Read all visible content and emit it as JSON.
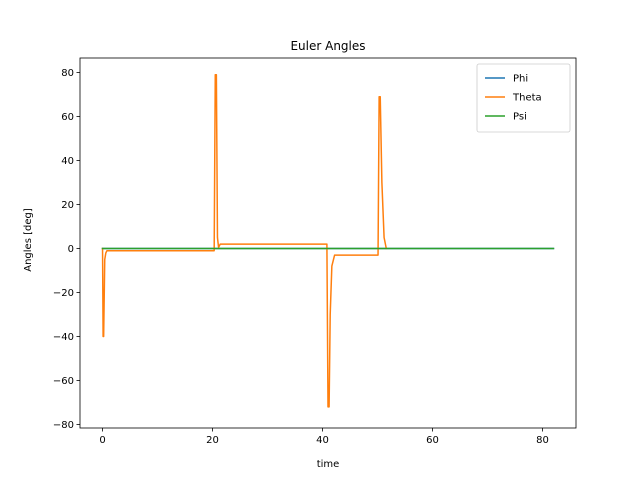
{
  "chart_data": {
    "type": "line",
    "title": "Euler Angles",
    "xlabel": "time",
    "ylabel": "Angles [deg]",
    "xlim": [
      -4.1,
      86.1
    ],
    "ylim": [
      -81.6,
      86.6
    ],
    "xticks": [
      0,
      20,
      40,
      60,
      80
    ],
    "yticks": [
      -80,
      -60,
      -40,
      -20,
      0,
      20,
      40,
      60,
      80
    ],
    "grid": false,
    "legend_position": "top-right",
    "series": [
      {
        "name": "Phi",
        "color": "#1f77b4",
        "x": [
          0,
          82
        ],
        "y": [
          0,
          0
        ]
      },
      {
        "name": "Theta",
        "color": "#ff7f0e",
        "x": [
          0,
          0.1,
          0.2,
          0.4,
          0.6,
          0.8,
          1.2,
          20.3,
          20.5,
          20.7,
          20.9,
          21.1,
          21.4,
          21.8,
          40.8,
          41.0,
          41.2,
          41.4,
          41.7,
          42.2,
          50.1,
          50.3,
          50.5,
          50.8,
          51.2,
          51.6
        ],
        "y": [
          0,
          -40,
          -40,
          -5,
          -2,
          -1,
          -1,
          -1,
          79,
          79,
          5,
          0.5,
          2,
          2,
          2,
          -72,
          -72,
          -30,
          -8,
          -3,
          -3,
          69,
          69,
          30,
          5,
          0
        ]
      },
      {
        "name": "Psi",
        "color": "#2ca02c",
        "x": [
          0,
          82
        ],
        "y": [
          0,
          0
        ]
      }
    ]
  }
}
